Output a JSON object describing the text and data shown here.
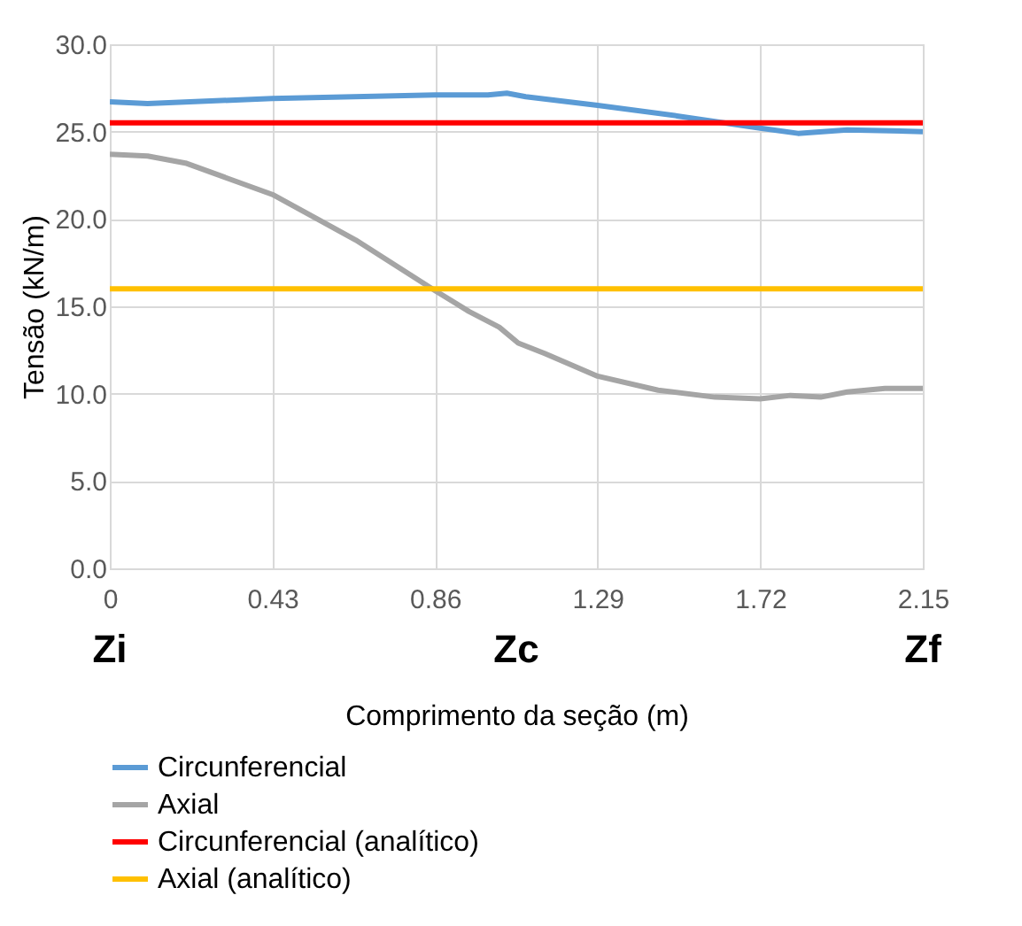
{
  "chart_data": {
    "type": "line",
    "xlabel": "Comprimento da seção (m)",
    "ylabel": "Tensão (kN/m)",
    "xlim": [
      0,
      2.15
    ],
    "xticks": [
      0,
      0.43,
      0.86,
      1.29,
      1.72,
      2.15
    ],
    "ylim": [
      0,
      30
    ],
    "yticks": [
      {
        "value": 0,
        "label": "0.0"
      },
      {
        "value": 5,
        "label": "5.0"
      },
      {
        "value": 10,
        "label": "10.0"
      },
      {
        "value": 15,
        "label": "15.0"
      },
      {
        "value": 20,
        "label": "20.0"
      },
      {
        "value": 25,
        "label": "25.0"
      },
      {
        "value": 30,
        "label": "30.0"
      }
    ],
    "grid": true,
    "legend": "bottom",
    "marker": "none",
    "line_style": "solid",
    "series": [
      {
        "name": "Circunferencial",
        "color": "#5b9bd5",
        "x": [
          0,
          0.1,
          0.43,
          0.86,
          1.0,
          1.05,
          1.1,
          1.29,
          1.5,
          1.72,
          1.82,
          1.95,
          2.15
        ],
        "values": [
          26.7,
          26.6,
          26.9,
          27.1,
          27.1,
          27.2,
          27.0,
          26.5,
          25.9,
          25.2,
          24.9,
          25.1,
          25.0
        ]
      },
      {
        "name": "Axial",
        "color": "#a5a5a5",
        "x": [
          0,
          0.1,
          0.2,
          0.43,
          0.65,
          0.86,
          0.95,
          1.03,
          1.08,
          1.15,
          1.29,
          1.45,
          1.6,
          1.72,
          1.8,
          1.88,
          1.95,
          2.05,
          2.15
        ],
        "values": [
          23.7,
          23.6,
          23.2,
          21.4,
          18.8,
          15.9,
          14.7,
          13.8,
          12.9,
          12.3,
          11.0,
          10.2,
          9.8,
          9.7,
          9.9,
          9.8,
          10.1,
          10.3,
          10.3
        ]
      },
      {
        "name": "Circunferencial (analítico)",
        "color": "#ff0000",
        "x": [
          0,
          2.15
        ],
        "values": [
          25.5,
          25.5
        ]
      },
      {
        "name": "Axial (analítico)",
        "color": "#ffc000",
        "x": [
          0,
          2.15
        ],
        "values": [
          16.0,
          16.0
        ]
      }
    ],
    "annotations": [
      "Zi",
      "Zc",
      "Zf"
    ]
  }
}
